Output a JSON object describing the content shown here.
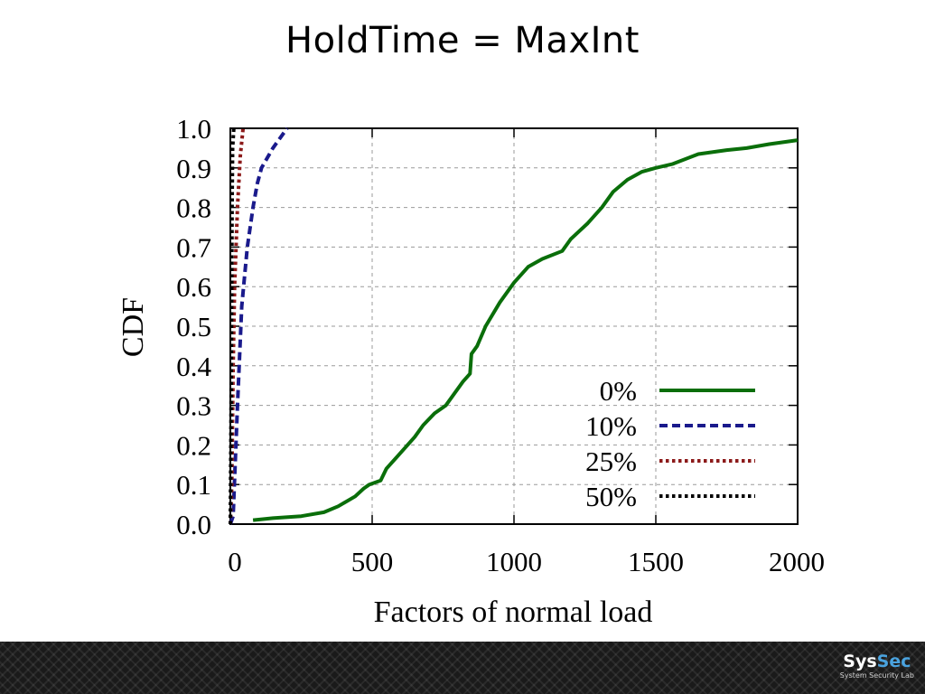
{
  "slide": {
    "title": "HoldTime = MaxInt"
  },
  "footer": {
    "logo_part1": "Sys",
    "logo_part2": "Sec",
    "logo_subtitle": "System Security Lab"
  },
  "chart_data": {
    "type": "line",
    "xlabel": "Factors of normal load",
    "ylabel": "CDF",
    "xlim": [
      0,
      2000
    ],
    "ylim": [
      0,
      1
    ],
    "x_ticks": [
      "0",
      "500",
      "1000",
      "1500",
      "2000"
    ],
    "y_ticks": [
      "0.0",
      "0.1",
      "0.2",
      "0.3",
      "0.4",
      "0.5",
      "0.6",
      "0.7",
      "0.8",
      "0.9",
      "1.0"
    ],
    "grid": true,
    "legend": "bottom-right",
    "series": [
      {
        "name": "0%",
        "color": "#0a6e0a",
        "style": "solid",
        "points": [
          [
            80,
            0.01
          ],
          [
            150,
            0.015
          ],
          [
            250,
            0.02
          ],
          [
            330,
            0.03
          ],
          [
            380,
            0.045
          ],
          [
            440,
            0.07
          ],
          [
            470,
            0.09
          ],
          [
            490,
            0.1
          ],
          [
            530,
            0.11
          ],
          [
            550,
            0.14
          ],
          [
            600,
            0.18
          ],
          [
            650,
            0.22
          ],
          [
            680,
            0.25
          ],
          [
            720,
            0.28
          ],
          [
            760,
            0.3
          ],
          [
            800,
            0.34
          ],
          [
            820,
            0.36
          ],
          [
            845,
            0.38
          ],
          [
            850,
            0.43
          ],
          [
            870,
            0.45
          ],
          [
            900,
            0.5
          ],
          [
            950,
            0.56
          ],
          [
            1000,
            0.61
          ],
          [
            1050,
            0.65
          ],
          [
            1100,
            0.67
          ],
          [
            1170,
            0.69
          ],
          [
            1200,
            0.72
          ],
          [
            1260,
            0.76
          ],
          [
            1310,
            0.8
          ],
          [
            1350,
            0.84
          ],
          [
            1400,
            0.87
          ],
          [
            1450,
            0.89
          ],
          [
            1500,
            0.9
          ],
          [
            1560,
            0.91
          ],
          [
            1650,
            0.935
          ],
          [
            1750,
            0.945
          ],
          [
            1820,
            0.95
          ],
          [
            1900,
            0.96
          ],
          [
            2000,
            0.97
          ]
        ]
      },
      {
        "name": "10%",
        "color": "#1a1a8c",
        "style": "dashed",
        "points": [
          [
            0,
            0
          ],
          [
            10,
            0.02
          ],
          [
            25,
            0.3
          ],
          [
            40,
            0.55
          ],
          [
            60,
            0.7
          ],
          [
            80,
            0.8
          ],
          [
            95,
            0.86
          ],
          [
            110,
            0.9
          ],
          [
            150,
            0.95
          ],
          [
            200,
            1.0
          ]
        ]
      },
      {
        "name": "25%",
        "color": "#8c1a1a",
        "style": "dotted",
        "points": [
          [
            0,
            0
          ],
          [
            5,
            0.1
          ],
          [
            10,
            0.4
          ],
          [
            15,
            0.6
          ],
          [
            25,
            0.8
          ],
          [
            35,
            0.93
          ],
          [
            45,
            1.0
          ]
        ]
      },
      {
        "name": "50%",
        "color": "#000000",
        "style": "dotted",
        "points": [
          [
            0,
            0
          ],
          [
            2,
            0.2
          ],
          [
            4,
            0.5
          ],
          [
            6,
            0.8
          ],
          [
            8,
            0.95
          ],
          [
            12,
            1.0
          ]
        ]
      }
    ]
  }
}
